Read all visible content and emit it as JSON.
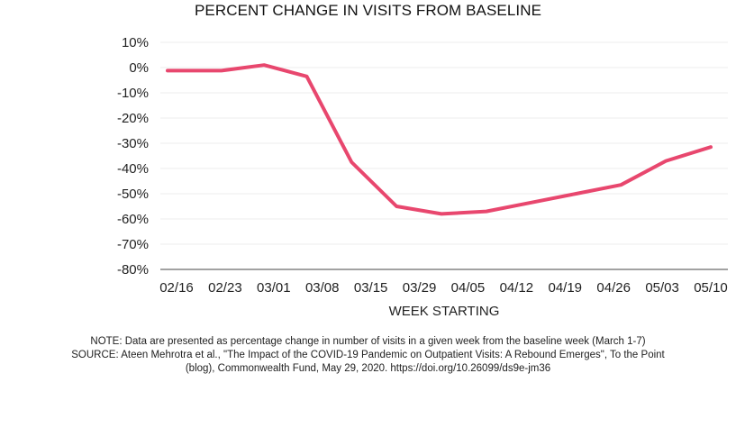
{
  "title": "PERCENT CHANGE IN VISITS FROM BASELINE",
  "chart_data": {
    "type": "line",
    "title": "PERCENT CHANGE IN VISITS FROM BASELINE",
    "xlabel": "WEEK STARTING",
    "ylabel": "",
    "categories": [
      "02/16",
      "02/23",
      "03/01",
      "03/08",
      "03/15",
      "03/29",
      "04/05",
      "04/12",
      "04/19",
      "04/26",
      "05/03",
      "05/10"
    ],
    "y_ticks": [
      "10%",
      "0%",
      "-10%",
      "-20%",
      "-30%",
      "-40%",
      "-50%",
      "-60%",
      "-70%",
      "-80%"
    ],
    "ylim": [
      -80,
      10
    ],
    "grid": true,
    "line_color": "#e8476e",
    "series": [
      {
        "x": [
          "02/16",
          "02/23",
          "03/01 (mid)",
          "03/08 (mid)",
          "03/08",
          "03/15",
          "03/29",
          "04/05",
          "04/12",
          "04/19",
          "04/26",
          "05/03",
          "05/10"
        ],
        "values": [
          -1.2,
          -1.2,
          1,
          -3.5,
          -37.5,
          -55,
          -58,
          -57,
          -53.5,
          -50,
          -46.5,
          -37,
          -31.5
        ]
      }
    ]
  },
  "notes": {
    "line1": "NOTE: Data are presented as percentage change in number of visits in a given week from the baseline week (March 1-7)",
    "line2": "SOURCE: Ateen Mehrotra et al., \"The Impact of the COVID-19 Pandemic on Outpatient Visits: A Rebound Emerges\", To the Point",
    "line3": "(blog), Commonwealth Fund, May 29, 2020. https://doi.org/10.26099/ds9e-jm36"
  }
}
